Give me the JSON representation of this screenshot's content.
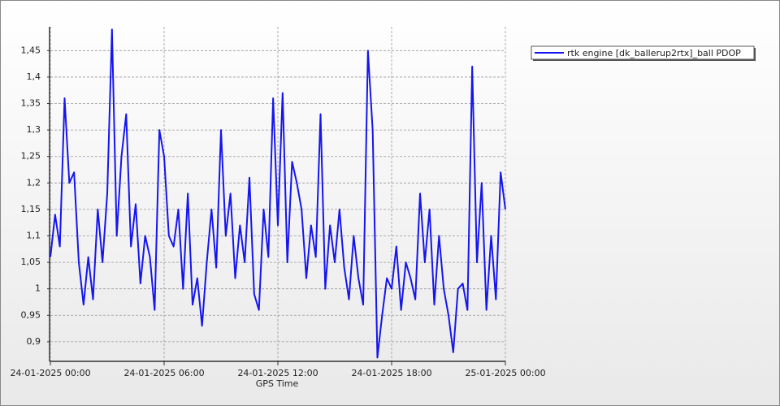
{
  "chart_data": {
    "type": "line",
    "x_label": "GPS Time",
    "x": [
      "2025-01-24T00:00",
      "2025-01-24T00:15",
      "2025-01-24T00:30",
      "2025-01-24T00:45",
      "2025-01-24T01:00",
      "2025-01-24T01:15",
      "2025-01-24T01:30",
      "2025-01-24T01:45",
      "2025-01-24T02:00",
      "2025-01-24T02:15",
      "2025-01-24T02:30",
      "2025-01-24T02:45",
      "2025-01-24T03:00",
      "2025-01-24T03:15",
      "2025-01-24T03:30",
      "2025-01-24T03:45",
      "2025-01-24T04:00",
      "2025-01-24T04:15",
      "2025-01-24T04:30",
      "2025-01-24T04:45",
      "2025-01-24T05:00",
      "2025-01-24T05:15",
      "2025-01-24T05:30",
      "2025-01-24T05:45",
      "2025-01-24T06:00",
      "2025-01-24T06:15",
      "2025-01-24T06:30",
      "2025-01-24T06:45",
      "2025-01-24T07:00",
      "2025-01-24T07:15",
      "2025-01-24T07:30",
      "2025-01-24T07:45",
      "2025-01-24T08:00",
      "2025-01-24T08:15",
      "2025-01-24T08:30",
      "2025-01-24T08:45",
      "2025-01-24T09:00",
      "2025-01-24T09:15",
      "2025-01-24T09:30",
      "2025-01-24T09:45",
      "2025-01-24T10:00",
      "2025-01-24T10:15",
      "2025-01-24T10:30",
      "2025-01-24T10:45",
      "2025-01-24T11:00",
      "2025-01-24T11:15",
      "2025-01-24T11:30",
      "2025-01-24T11:45",
      "2025-01-24T12:00",
      "2025-01-24T12:15",
      "2025-01-24T12:30",
      "2025-01-24T12:45",
      "2025-01-24T13:00",
      "2025-01-24T13:15",
      "2025-01-24T13:30",
      "2025-01-24T13:45",
      "2025-01-24T14:00",
      "2025-01-24T14:15",
      "2025-01-24T14:30",
      "2025-01-24T14:45",
      "2025-01-24T15:00",
      "2025-01-24T15:15",
      "2025-01-24T15:30",
      "2025-01-24T15:45",
      "2025-01-24T16:00",
      "2025-01-24T16:15",
      "2025-01-24T16:30",
      "2025-01-24T16:45",
      "2025-01-24T17:00",
      "2025-01-24T17:15",
      "2025-01-24T17:30",
      "2025-01-24T17:45",
      "2025-01-24T18:00",
      "2025-01-24T18:15",
      "2025-01-24T18:30",
      "2025-01-24T18:45",
      "2025-01-24T19:00",
      "2025-01-24T19:15",
      "2025-01-24T19:30",
      "2025-01-24T19:45",
      "2025-01-24T20:00",
      "2025-01-24T20:15",
      "2025-01-24T20:30",
      "2025-01-24T20:45",
      "2025-01-24T21:00",
      "2025-01-24T21:15",
      "2025-01-24T21:30",
      "2025-01-24T21:45",
      "2025-01-24T22:00",
      "2025-01-24T22:15",
      "2025-01-24T22:30",
      "2025-01-24T22:45",
      "2025-01-24T23:00",
      "2025-01-24T23:15",
      "2025-01-24T23:30",
      "2025-01-24T23:45",
      "2025-01-25T00:00"
    ],
    "series": [
      {
        "name": "rtk engine [dk_ballerup2rtx]_ball PDOP",
        "color": "#1515f0",
        "values": [
          1.06,
          1.14,
          1.08,
          1.36,
          1.2,
          1.22,
          1.05,
          0.97,
          1.06,
          0.98,
          1.15,
          1.05,
          1.18,
          1.49,
          1.1,
          1.25,
          1.33,
          1.08,
          1.16,
          1.01,
          1.1,
          1.06,
          0.96,
          1.3,
          1.25,
          1.1,
          1.08,
          1.15,
          1.0,
          1.18,
          0.97,
          1.02,
          0.93,
          1.05,
          1.15,
          1.04,
          1.3,
          1.1,
          1.18,
          1.02,
          1.12,
          1.05,
          1.21,
          0.99,
          0.96,
          1.15,
          1.06,
          1.36,
          1.12,
          1.37,
          1.05,
          1.24,
          1.2,
          1.15,
          1.02,
          1.12,
          1.06,
          1.33,
          1.0,
          1.12,
          1.05,
          1.15,
          1.04,
          0.98,
          1.1,
          1.02,
          0.97,
          1.45,
          1.3,
          0.87,
          0.95,
          1.02,
          1.0,
          1.08,
          0.96,
          1.05,
          1.02,
          0.98,
          1.18,
          1.05,
          1.15,
          0.97,
          1.1,
          1.0,
          0.95,
          0.88,
          1.0,
          1.01,
          0.96,
          1.42,
          1.05,
          1.2,
          0.96,
          1.1,
          0.98,
          1.22,
          1.15
        ]
      }
    ],
    "xlim": [
      "2025-01-24T00:00",
      "2025-01-25T00:00"
    ],
    "xticks": [
      {
        "value": "2025-01-24T00:00",
        "label": "24-01-2025 00:00"
      },
      {
        "value": "2025-01-24T06:00",
        "label": "24-01-2025 06:00"
      },
      {
        "value": "2025-01-24T12:00",
        "label": "24-01-2025 12:00"
      },
      {
        "value": "2025-01-24T18:00",
        "label": "24-01-2025 18:00"
      },
      {
        "value": "2025-01-25T00:00",
        "label": "25-01-2025 00:00"
      }
    ],
    "ylim": [
      0.863,
      1.495
    ],
    "yticks": [
      {
        "value": 0.9,
        "label": "0,9"
      },
      {
        "value": 0.95,
        "label": "0,95"
      },
      1,
      {
        "value": 1.05,
        "label": "1,05"
      },
      {
        "value": 1.1,
        "label": "1,1"
      },
      {
        "value": 1.15,
        "label": "1,15"
      },
      {
        "value": 1.2,
        "label": "1,2"
      },
      {
        "value": 1.25,
        "label": "1,25"
      },
      {
        "value": 1.3,
        "label": "1,3"
      },
      {
        "value": 1.35,
        "label": "1,35"
      },
      {
        "value": 1.4,
        "label": "1,4"
      },
      {
        "value": 1.45,
        "label": "1,45"
      }
    ],
    "grid": true,
    "legend": "top-right"
  }
}
